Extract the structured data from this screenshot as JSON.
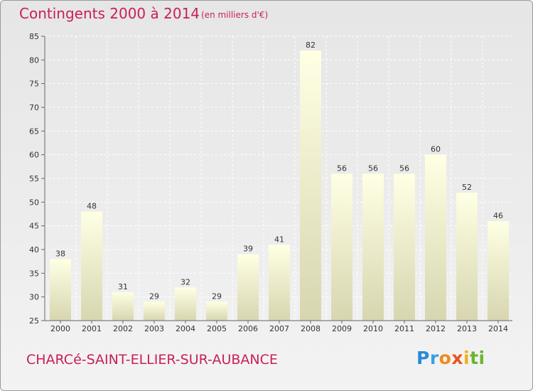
{
  "title": "Contingents 2000 à 2014",
  "subtitle": "(en milliers d'€)",
  "commune": "CHARCé-SAINT-ELLIER-SUR-AUBANCE",
  "logo": [
    "P",
    "r",
    "o",
    "x",
    "i",
    "ti"
  ],
  "colors": {
    "title": "#c81e5c",
    "bar_top": "#ffffe4",
    "bar_bottom": "#d7d6b0"
  },
  "chart_data": {
    "type": "bar",
    "categories": [
      "2000",
      "2001",
      "2002",
      "2003",
      "2004",
      "2005",
      "2006",
      "2007",
      "2008",
      "2009",
      "2010",
      "2011",
      "2012",
      "2013",
      "2014"
    ],
    "values": [
      38,
      48,
      31,
      29,
      32,
      29,
      39,
      41,
      82,
      56,
      56,
      56,
      60,
      52,
      46
    ],
    "ylim": [
      25,
      85
    ],
    "yticks": [
      25,
      30,
      35,
      40,
      45,
      50,
      55,
      60,
      65,
      70,
      75,
      80,
      85
    ],
    "grid": true,
    "xlabel": "",
    "ylabel": ""
  }
}
